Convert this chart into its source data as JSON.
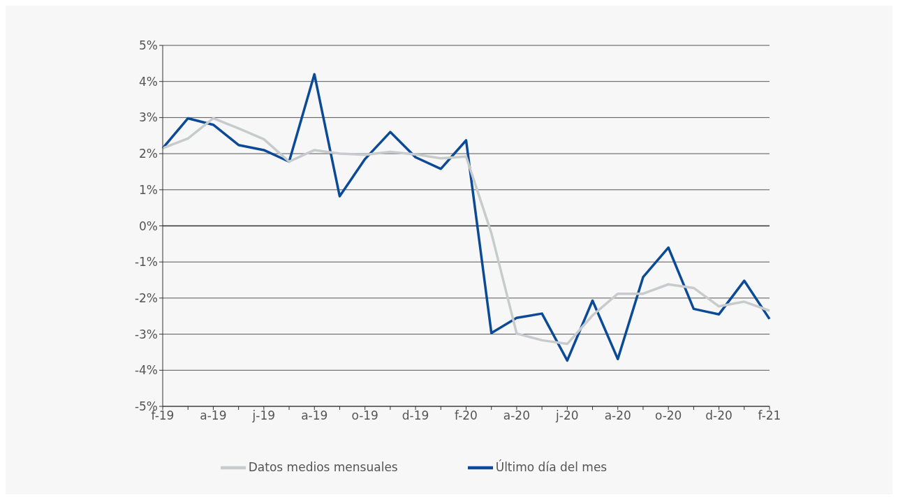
{
  "chart_data": {
    "type": "line",
    "categories": [
      "f-19",
      null,
      "a-19",
      null,
      "j-19",
      null,
      "a-19",
      null,
      "o-19",
      null,
      "d-19",
      null,
      "f-20",
      null,
      "a-20",
      null,
      "j-20",
      null,
      "a-20",
      null,
      "o-20",
      null,
      "d-20",
      null,
      "f-21"
    ],
    "series": [
      {
        "name": "Último día del mes",
        "color": "#0b4a96",
        "values": [
          2.15,
          2.98,
          2.8,
          2.24,
          2.1,
          1.78,
          4.2,
          0.82,
          1.85,
          2.6,
          1.9,
          1.58,
          2.37,
          -2.97,
          -2.55,
          -2.43,
          -3.73,
          -2.07,
          -3.69,
          -1.42,
          -0.6,
          -2.3,
          -2.45,
          -1.52,
          -2.58
        ]
      },
      {
        "name": "Datos medios mensuales",
        "color": "#c8cbcc",
        "values": [
          2.15,
          2.42,
          2.98,
          2.7,
          2.4,
          1.78,
          2.1,
          2.0,
          1.97,
          2.05,
          1.98,
          1.87,
          1.92,
          -0.2,
          -2.98,
          -3.17,
          -3.27,
          -2.48,
          -1.88,
          -1.88,
          -1.62,
          -1.72,
          -2.23,
          -2.1,
          -2.35
        ]
      }
    ],
    "ylim": [
      -5,
      5
    ],
    "yticks": [
      {
        "value": -5,
        "label": "-5%"
      },
      {
        "value": -4,
        "label": "-4%"
      },
      {
        "value": -3,
        "label": "-3%"
      },
      {
        "value": -2,
        "label": "-2%"
      },
      {
        "value": -1,
        "label": "-1%"
      },
      {
        "value": 0,
        "label": "0%"
      },
      {
        "value": 1,
        "label": "1%"
      },
      {
        "value": 2,
        "label": "2%"
      },
      {
        "value": 3,
        "label": "3%"
      },
      {
        "value": 4,
        "label": "4%"
      },
      {
        "value": 5,
        "label": "5%"
      }
    ],
    "grid": "y",
    "legend": "bottom",
    "marker": "none",
    "line_style": "solid"
  }
}
